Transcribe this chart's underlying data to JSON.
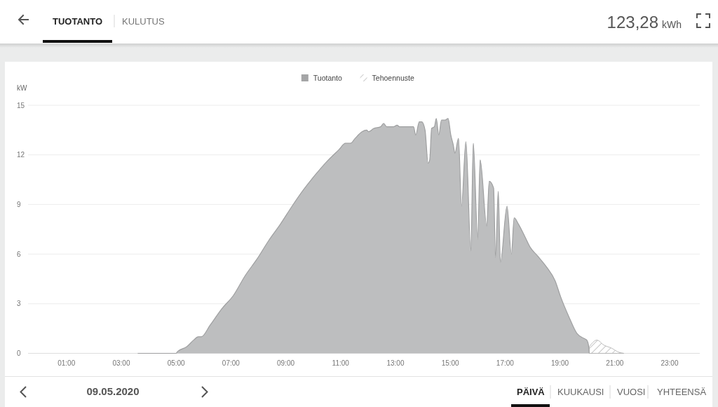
{
  "chart_data": {
    "type": "area",
    "ylabel": "kW",
    "xlim": [
      -0.4,
      24.1
    ],
    "xticks": [
      {
        "value": 1,
        "label": "01:00"
      },
      {
        "value": 3,
        "label": "03:00"
      },
      {
        "value": 5,
        "label": "05:00"
      },
      {
        "value": 7,
        "label": "07:00"
      },
      {
        "value": 9,
        "label": "09:00"
      },
      {
        "value": 11,
        "label": "11:00"
      },
      {
        "value": 13,
        "label": "13:00"
      },
      {
        "value": 15,
        "label": "15:00"
      },
      {
        "value": 17,
        "label": "17:00"
      },
      {
        "value": 19,
        "label": "19:00"
      },
      {
        "value": 21,
        "label": "21:00"
      },
      {
        "value": 23,
        "label": "23:00"
      }
    ],
    "ylim": [
      0,
      15
    ],
    "yticks": [
      0,
      3,
      6,
      9,
      12,
      15
    ],
    "grid": "y",
    "legend": "top",
    "series": [
      {
        "name": "Tuotanto",
        "color": "#bdbebf",
        "x": [
          3.6,
          5.0,
          5.05,
          5.39,
          5.64,
          5.81,
          5.92,
          6.24,
          6.67,
          7.09,
          7.52,
          7.95,
          8.37,
          8.8,
          9.23,
          9.65,
          10.08,
          10.5,
          10.93,
          11.18,
          11.36,
          11.53,
          11.78,
          11.95,
          12.02,
          12.21,
          12.46,
          12.57,
          12.68,
          12.93,
          13.06,
          13.15,
          13.4,
          13.66,
          13.74,
          13.87,
          13.96,
          14.08,
          14.19,
          14.25,
          14.32,
          14.42,
          14.49,
          14.58,
          14.68,
          14.81,
          14.92,
          15.02,
          15.11,
          15.17,
          15.3,
          15.41,
          15.57,
          15.75,
          15.84,
          16.0,
          16.09,
          16.33,
          16.42,
          16.58,
          16.65,
          16.75,
          16.83,
          17.07,
          17.23,
          17.33,
          17.49,
          17.71,
          17.92,
          18.18,
          18.52,
          18.82,
          19.03,
          19.33,
          19.62,
          19.88,
          19.98,
          20.05,
          20.07
        ],
        "values": [
          0,
          0,
          0.1,
          0.4,
          0.8,
          1.0,
          1.0,
          1.7,
          2.7,
          3.5,
          4.7,
          5.7,
          6.8,
          7.8,
          8.9,
          9.9,
          10.8,
          11.6,
          12.3,
          12.7,
          12.7,
          13.0,
          13.4,
          13.5,
          13.4,
          13.6,
          13.7,
          13.9,
          13.7,
          13.7,
          13.8,
          13.7,
          13.7,
          13.7,
          13.2,
          14.0,
          14.0,
          13.5,
          11.5,
          11.7,
          13.6,
          13.7,
          14.2,
          13.2,
          14.1,
          14.1,
          14.2,
          13.2,
          12.6,
          12.1,
          13.0,
          8.9,
          12.8,
          6.2,
          12.7,
          6.9,
          11.7,
          7.7,
          10.4,
          10.0,
          5.8,
          9.8,
          5.5,
          8.9,
          6.0,
          8.2,
          7.8,
          7.1,
          6.4,
          5.9,
          5.2,
          4.4,
          3.4,
          2.2,
          1.2,
          0.9,
          0.8,
          0.4,
          0
        ]
      },
      {
        "name": "Tehoennuste",
        "color": "#ababab",
        "x": [
          20.07,
          20.35,
          20.6,
          20.9,
          21.1,
          21.33
        ],
        "values": [
          0.4,
          0.8,
          0.5,
          0.3,
          0.1,
          0
        ]
      }
    ],
    "annotations": [
      "TUOTANTO",
      "KULUTUS",
      "123,28 kWh",
      "09.05.2020",
      "PÄIVÄ",
      "KUUKAUSI",
      "VUOSI",
      "YHTEENSÄ"
    ]
  }
}
